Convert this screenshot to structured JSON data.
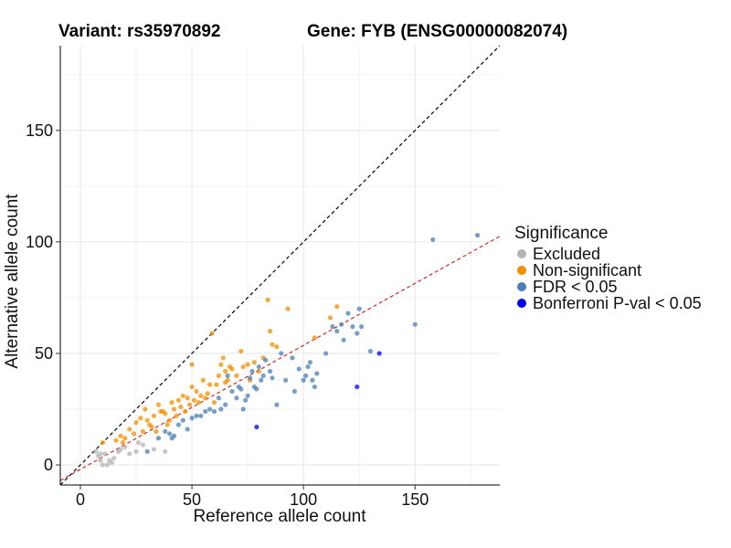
{
  "title_left": "Variant: rs35970892",
  "title_right": "Gene: FYB (ENSG00000082074)",
  "chart_data": {
    "type": "scatter",
    "xlabel": "Reference allele count",
    "ylabel": "Alternative allele count",
    "xlim": [
      -9,
      188
    ],
    "ylim": [
      -9,
      188
    ],
    "xticks": [
      0,
      50,
      100,
      150
    ],
    "yticks": [
      0,
      50,
      100,
      150
    ],
    "grid": true,
    "legend_position": "right",
    "reference_lines": [
      {
        "name": "identity",
        "slope": 1,
        "intercept": 0,
        "style": "dashed",
        "color": "#000000"
      },
      {
        "name": "fit",
        "slope": 0.556,
        "intercept": -2,
        "style": "dashed",
        "color": "#d62728"
      }
    ],
    "legend": {
      "title": "Significance",
      "items": [
        {
          "label": "Excluded",
          "color": "#b3b3b3"
        },
        {
          "label": "Non-significant",
          "color": "#f28e00"
        },
        {
          "label": "FDR < 0.05",
          "color": "#4a7fb5"
        },
        {
          "label": "Bonferroni P-val < 0.05",
          "color": "#0000ee"
        }
      ]
    },
    "series": [
      {
        "name": "Excluded",
        "color": "#b3b3b3",
        "points": [
          [
            7,
            6
          ],
          [
            8,
            4
          ],
          [
            9,
            2
          ],
          [
            10,
            0
          ],
          [
            11,
            5
          ],
          [
            12,
            0
          ],
          [
            13,
            2
          ],
          [
            14,
            1
          ],
          [
            17,
            6
          ],
          [
            18,
            7
          ],
          [
            20,
            8
          ],
          [
            22,
            5
          ],
          [
            25,
            6
          ],
          [
            28,
            9
          ],
          [
            33,
            7
          ],
          [
            38,
            6
          ],
          [
            15,
            3
          ],
          [
            9,
            5
          ],
          [
            26,
            10
          ]
        ]
      },
      {
        "name": "Non-significant",
        "color": "#f28e00",
        "points": [
          [
            10,
            10
          ],
          [
            16,
            11
          ],
          [
            18,
            13
          ],
          [
            20,
            12
          ],
          [
            22,
            16
          ],
          [
            25,
            19
          ],
          [
            27,
            21
          ],
          [
            28,
            15
          ],
          [
            30,
            20
          ],
          [
            31,
            18
          ],
          [
            33,
            22
          ],
          [
            35,
            27
          ],
          [
            36,
            24
          ],
          [
            38,
            23
          ],
          [
            39,
            18
          ],
          [
            40,
            20
          ],
          [
            41,
            28
          ],
          [
            42,
            25
          ],
          [
            43,
            22
          ],
          [
            44,
            29
          ],
          [
            45,
            26
          ],
          [
            46,
            31
          ],
          [
            47,
            24
          ],
          [
            48,
            30
          ],
          [
            49,
            27
          ],
          [
            50,
            35
          ],
          [
            51,
            29
          ],
          [
            52,
            33
          ],
          [
            53,
            28
          ],
          [
            54,
            31
          ],
          [
            55,
            38
          ],
          [
            56,
            30
          ],
          [
            57,
            32
          ],
          [
            58,
            36
          ],
          [
            59,
            59
          ],
          [
            60,
            28
          ],
          [
            61,
            36
          ],
          [
            62,
            40
          ],
          [
            63,
            45
          ],
          [
            64,
            48
          ],
          [
            65,
            42
          ],
          [
            66,
            38
          ],
          [
            67,
            44
          ],
          [
            68,
            43
          ],
          [
            70,
            40
          ],
          [
            72,
            51
          ],
          [
            73,
            44
          ],
          [
            75,
            45
          ],
          [
            76,
            38
          ],
          [
            78,
            46
          ],
          [
            80,
            42
          ],
          [
            82,
            48
          ],
          [
            84,
            74
          ],
          [
            85,
            60
          ],
          [
            86,
            54
          ],
          [
            88,
            53
          ],
          [
            93,
            70
          ],
          [
            105,
            57
          ],
          [
            112,
            66
          ],
          [
            115,
            71
          ],
          [
            24,
            14
          ],
          [
            32,
            17
          ],
          [
            37,
            24
          ],
          [
            34,
            15
          ],
          [
            29,
            25
          ],
          [
            19,
            10
          ],
          [
            65,
            37
          ],
          [
            50,
            45
          ]
        ]
      },
      {
        "name": "FDR < 0.05",
        "color": "#4a7fb5",
        "points": [
          [
            30,
            6
          ],
          [
            35,
            12
          ],
          [
            38,
            15
          ],
          [
            40,
            14
          ],
          [
            41,
            12
          ],
          [
            42,
            13
          ],
          [
            44,
            18
          ],
          [
            46,
            20
          ],
          [
            48,
            16
          ],
          [
            50,
            21
          ],
          [
            52,
            22
          ],
          [
            54,
            22
          ],
          [
            56,
            24
          ],
          [
            58,
            25
          ],
          [
            60,
            24
          ],
          [
            62,
            30
          ],
          [
            63,
            25
          ],
          [
            65,
            27
          ],
          [
            66,
            40
          ],
          [
            68,
            33
          ],
          [
            70,
            30
          ],
          [
            71,
            35
          ],
          [
            72,
            34
          ],
          [
            73,
            25
          ],
          [
            74,
            29
          ],
          [
            75,
            31
          ],
          [
            76,
            39
          ],
          [
            77,
            42
          ],
          [
            78,
            35
          ],
          [
            79,
            34
          ],
          [
            80,
            44
          ],
          [
            81,
            38
          ],
          [
            82,
            40
          ],
          [
            83,
            47
          ],
          [
            85,
            42
          ],
          [
            86,
            39
          ],
          [
            88,
            27
          ],
          [
            90,
            50
          ],
          [
            92,
            38
          ],
          [
            95,
            48
          ],
          [
            98,
            43
          ],
          [
            100,
            38
          ],
          [
            101,
            40
          ],
          [
            102,
            44
          ],
          [
            104,
            38
          ],
          [
            105,
            35
          ],
          [
            106,
            41
          ],
          [
            110,
            50
          ],
          [
            113,
            62
          ],
          [
            115,
            60
          ],
          [
            117,
            63
          ],
          [
            118,
            56
          ],
          [
            120,
            68
          ],
          [
            124,
            59
          ],
          [
            125,
            70
          ],
          [
            126,
            62
          ],
          [
            130,
            51
          ],
          [
            150,
            63
          ],
          [
            158,
            101
          ],
          [
            178,
            103
          ],
          [
            122,
            62
          ],
          [
            96,
            33
          ],
          [
            103,
            46
          ]
        ]
      },
      {
        "name": "Bonferroni P-val < 0.05",
        "color": "#0000ee",
        "points": [
          [
            79,
            17
          ],
          [
            124,
            35
          ],
          [
            134,
            50
          ]
        ]
      }
    ]
  }
}
